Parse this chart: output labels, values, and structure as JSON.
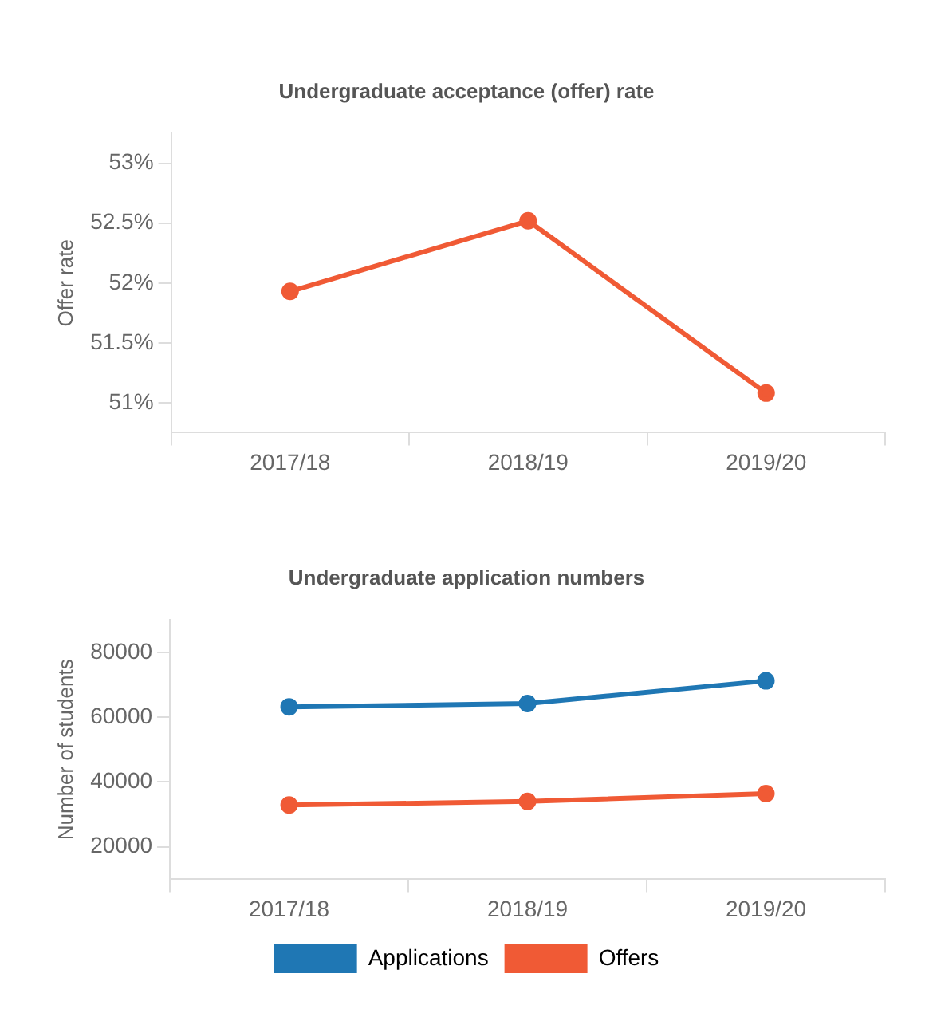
{
  "chart_data": [
    {
      "type": "line",
      "title": "Undergraduate acceptance (offer) rate",
      "ylabel": "Offer rate",
      "categories": [
        "2017/18",
        "2018/19",
        "2019/20"
      ],
      "series": [
        {
          "color": "#f05a35",
          "values": [
            51.93,
            52.52,
            51.08
          ]
        }
      ],
      "ylim": [
        50.75,
        53.25
      ],
      "yticks": [
        {
          "value": 51,
          "label": "51%"
        },
        {
          "value": 51.5,
          "label": "51.5%"
        },
        {
          "value": 52,
          "label": "52%"
        },
        {
          "value": 52.5,
          "label": "52.5%"
        },
        {
          "value": 53,
          "label": "53%"
        }
      ],
      "grid": false,
      "legend": false,
      "marker": "circle"
    },
    {
      "type": "line",
      "title": "Undergraduate application numbers",
      "ylabel": "Number of students",
      "categories": [
        "2017/18",
        "2018/19",
        "2019/20"
      ],
      "series": [
        {
          "name": "Applications",
          "color": "#1f77b4",
          "values": [
            63200,
            64200,
            71200
          ]
        },
        {
          "name": "Offers",
          "color": "#f05a35",
          "values": [
            32900,
            34000,
            36400
          ]
        }
      ],
      "ylim": [
        10000,
        90000
      ],
      "yticks": [
        20000,
        40000,
        60000,
        80000
      ],
      "grid": false,
      "legend": "bottom",
      "marker": "circle"
    }
  ]
}
